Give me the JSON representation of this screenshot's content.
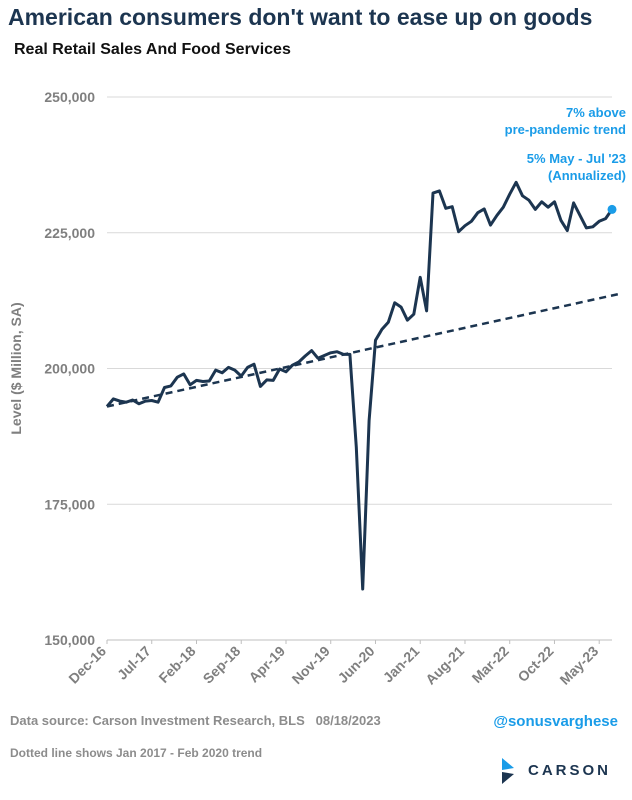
{
  "header": {
    "title": "American consumers don't want to ease up on goods",
    "subtitle": "Real Retail Sales And Food Services"
  },
  "footer": {
    "source": "Data source: Carson Investment Research, BLS",
    "date": "08/18/2023",
    "note": "Dotted line shows Jan 2017 - Feb 2020 trend",
    "handle": "@sonusvarghese",
    "logo_text": "CARSON"
  },
  "colors": {
    "series": "#1c3550",
    "accent": "#1a9ce8",
    "grid": "#d9d9d9",
    "axis_text": "#7f7f7f"
  },
  "chart_data": {
    "type": "line",
    "ylabel": "Level ($ Million, SA)",
    "ylim": [
      150000,
      250000
    ],
    "yticks": [
      150000,
      175000,
      200000,
      225000,
      250000
    ],
    "ytick_labels": [
      "150,000",
      "175,000",
      "200,000",
      "225,000",
      "250,000"
    ],
    "xtick_labels": [
      "Dec-16",
      "Jul-17",
      "Feb-18",
      "Sep-18",
      "Apr-19",
      "Nov-19",
      "Jun-20",
      "Jan-21",
      "Aug-21",
      "Mar-22",
      "Oct-22",
      "May-23"
    ],
    "x_start": "Dec-16",
    "x_end": "Jul-23",
    "grid": "horizontal",
    "series": [
      {
        "values": [
          193000,
          194400,
          194000,
          193800,
          194200,
          193500,
          194000,
          194100,
          193800,
          196500,
          196800,
          198400,
          199000,
          197000,
          197800,
          197600,
          197700,
          199700,
          199200,
          200200,
          199700,
          198600,
          200200,
          200800,
          196700,
          197900,
          197800,
          199900,
          199400,
          200600,
          201200,
          202300,
          203300,
          201900,
          202400,
          202900,
          203100,
          202600,
          202600,
          185500,
          159400,
          190400,
          205200,
          207200,
          208500,
          212100,
          211300,
          208900,
          210000,
          216800,
          210600,
          232300,
          232700,
          229500,
          229800,
          225200,
          226300,
          227100,
          228700,
          229400,
          226400,
          228200,
          229700,
          232100,
          234300,
          231800,
          231000,
          229300,
          230700,
          229700,
          230700,
          227300,
          225400,
          230500,
          228200,
          225900,
          226100,
          227100,
          227600,
          229300
        ]
      },
      {
        "style": "dashed",
        "points": [
          [
            0,
            193000
          ],
          [
            80,
            213700
          ]
        ]
      }
    ],
    "annotations": [
      {
        "text": "7% above",
        "anchor": "top-right"
      },
      {
        "text": "pre-pandemic trend",
        "anchor": "top-right"
      },
      {
        "text": "5% May - Jul '23",
        "anchor": "top-right"
      },
      {
        "text": "(Annualized)",
        "anchor": "top-right"
      }
    ],
    "highlight_last_point": true
  }
}
